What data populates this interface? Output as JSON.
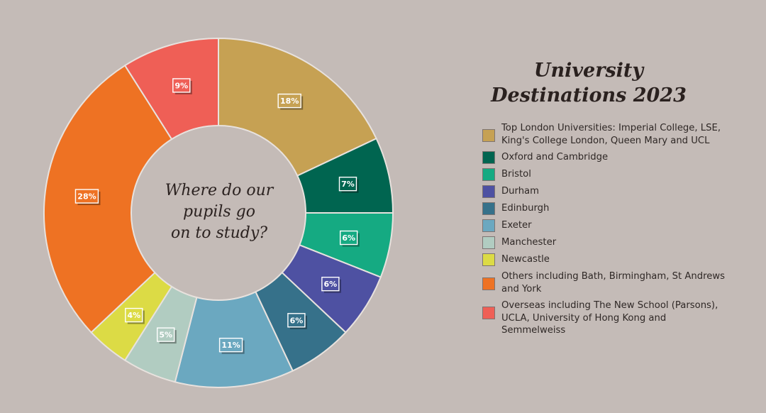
{
  "title": {
    "line1": "University",
    "line2": "Destinations 2023"
  },
  "center_text": [
    "Where do our",
    "pupils go",
    "on to study?"
  ],
  "chart_data": {
    "type": "pie",
    "variant": "donut",
    "title": "University Destinations 2023",
    "legend_position": "right",
    "slices": [
      {
        "label": "Top London Universities: Imperial College, LSE, King's College London, Queen Mary and UCL",
        "value": 18,
        "value_label": "18%",
        "color": "#c6a153"
      },
      {
        "label": "Oxford and Cambridge",
        "value": 7,
        "value_label": "7%",
        "color": "#006550"
      },
      {
        "label": "Bristol",
        "value": 6,
        "value_label": "6%",
        "color": "#15aa82"
      },
      {
        "label": "Durham",
        "value": 6,
        "value_label": "6%",
        "color": "#4e51a2"
      },
      {
        "label": "Edinburgh",
        "value": 6,
        "value_label": "6%",
        "color": "#36718a"
      },
      {
        "label": "Exeter",
        "value": 11,
        "value_label": "11%",
        "color": "#6ba8c0"
      },
      {
        "label": "Manchester",
        "value": 5,
        "value_label": "5%",
        "color": "#b1ccc1"
      },
      {
        "label": "Newcastle",
        "value": 4,
        "value_label": "4%",
        "color": "#dcdb45"
      },
      {
        "label": "Others including Bath, Birmingham, St Andrews and York",
        "value": 28,
        "value_label": "28%",
        "color": "#ee7223"
      },
      {
        "label": "Overseas including The New School (Parsons), UCLA, University of Hong Kong and Semmelweiss",
        "value": 9,
        "value_label": "9%",
        "color": "#ef5f56"
      }
    ]
  }
}
